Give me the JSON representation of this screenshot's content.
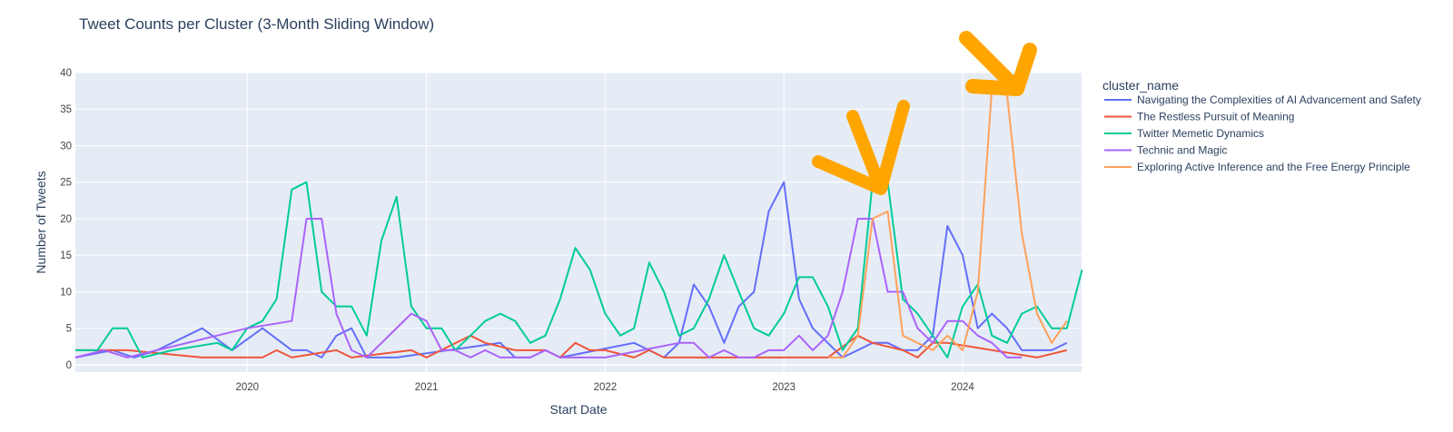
{
  "chart_data": {
    "type": "line",
    "title": "Tweet Counts per Cluster (3-Month Sliding Window)",
    "xlabel": "Start Date",
    "ylabel": "Number of Tweets",
    "xlim": [
      "2019-01-15",
      "2024-08-31"
    ],
    "ylim": [
      -1,
      40
    ],
    "yticks": [
      0,
      5,
      10,
      15,
      20,
      25,
      30,
      35,
      40
    ],
    "xticks": [
      {
        "label": "2020",
        "date": "2020-01-01"
      },
      {
        "label": "2021",
        "date": "2021-01-01"
      },
      {
        "label": "2022",
        "date": "2022-01-01"
      },
      {
        "label": "2023",
        "date": "2023-01-01"
      },
      {
        "label": "2024",
        "date": "2024-01-01"
      }
    ],
    "grid": true,
    "plot_background": "#e5ecf6",
    "legend": {
      "title": "cluster_name",
      "position": "right"
    },
    "series": [
      {
        "name": "Navigating the Complexities of AI Advancement and Safety",
        "color": "#636efa",
        "points": [
          [
            "2019-01-15",
            1
          ],
          [
            "2019-04-01",
            2
          ],
          [
            "2019-05-15",
            1
          ],
          [
            "2019-07-01",
            2
          ],
          [
            "2019-10-01",
            5
          ],
          [
            "2019-12-01",
            2
          ],
          [
            "2020-02-01",
            5
          ],
          [
            "2020-04-01",
            2
          ],
          [
            "2020-05-01",
            2
          ],
          [
            "2020-06-01",
            1
          ],
          [
            "2020-07-01",
            4
          ],
          [
            "2020-08-01",
            5
          ],
          [
            "2020-09-01",
            1
          ],
          [
            "2020-11-01",
            1
          ],
          [
            "2021-06-01",
            3
          ],
          [
            "2021-07-01",
            1
          ],
          [
            "2021-08-01",
            1
          ],
          [
            "2021-09-01",
            2
          ],
          [
            "2021-10-01",
            1
          ],
          [
            "2022-03-01",
            3
          ],
          [
            "2022-04-01",
            2
          ],
          [
            "2022-05-01",
            1
          ],
          [
            "2022-06-01",
            3
          ],
          [
            "2022-07-01",
            11
          ],
          [
            "2022-08-01",
            8
          ],
          [
            "2022-09-01",
            3
          ],
          [
            "2022-10-01",
            8
          ],
          [
            "2022-11-01",
            10
          ],
          [
            "2022-12-01",
            21
          ],
          [
            "2023-01-01",
            25
          ],
          [
            "2023-02-01",
            9
          ],
          [
            "2023-03-01",
            5
          ],
          [
            "2023-05-01",
            1
          ],
          [
            "2023-06-01",
            2
          ],
          [
            "2023-07-01",
            3
          ],
          [
            "2023-08-01",
            3
          ],
          [
            "2023-09-01",
            2
          ],
          [
            "2023-10-01",
            2
          ],
          [
            "2023-11-01",
            4
          ],
          [
            "2023-12-01",
            19
          ],
          [
            "2024-01-01",
            15
          ],
          [
            "2024-02-01",
            5
          ],
          [
            "2024-03-01",
            7
          ],
          [
            "2024-04-01",
            5
          ],
          [
            "2024-05-01",
            2
          ],
          [
            "2024-07-01",
            2
          ],
          [
            "2024-08-01",
            3
          ]
        ]
      },
      {
        "name": "The Restless Pursuit of Meaning",
        "color": "#ef553b",
        "points": [
          [
            "2019-01-15",
            2
          ],
          [
            "2019-05-01",
            2
          ],
          [
            "2019-10-01",
            1
          ],
          [
            "2019-11-15",
            1
          ],
          [
            "2020-01-01",
            1
          ],
          [
            "2020-02-01",
            1
          ],
          [
            "2020-03-01",
            2
          ],
          [
            "2020-04-01",
            1
          ],
          [
            "2020-07-01",
            2
          ],
          [
            "2020-08-01",
            1
          ],
          [
            "2020-12-01",
            2
          ],
          [
            "2021-01-01",
            1
          ],
          [
            "2021-04-01",
            4
          ],
          [
            "2021-05-01",
            3
          ],
          [
            "2021-07-01",
            2
          ],
          [
            "2021-09-01",
            2
          ],
          [
            "2021-10-01",
            1
          ],
          [
            "2021-11-01",
            3
          ],
          [
            "2021-12-01",
            2
          ],
          [
            "2022-01-01",
            2
          ],
          [
            "2022-03-01",
            1
          ],
          [
            "2022-04-01",
            2
          ],
          [
            "2022-05-01",
            1
          ],
          [
            "2022-07-01",
            1
          ],
          [
            "2023-04-01",
            1
          ],
          [
            "2023-06-01",
            4
          ],
          [
            "2023-07-01",
            3
          ],
          [
            "2023-09-01",
            2
          ],
          [
            "2023-10-01",
            1
          ],
          [
            "2023-11-01",
            3
          ],
          [
            "2023-12-01",
            3
          ],
          [
            "2024-06-01",
            1
          ],
          [
            "2024-08-01",
            2
          ]
        ]
      },
      {
        "name": "Twitter Memetic Dynamics",
        "color": "#00cc96",
        "points": [
          [
            "2019-01-15",
            2
          ],
          [
            "2019-03-01",
            2
          ],
          [
            "2019-04-01",
            5
          ],
          [
            "2019-05-01",
            5
          ],
          [
            "2019-06-01",
            1
          ],
          [
            "2019-08-01",
            2
          ],
          [
            "2019-11-01",
            3
          ],
          [
            "2019-12-01",
            2
          ],
          [
            "2020-01-01",
            5
          ],
          [
            "2020-02-01",
            6
          ],
          [
            "2020-03-01",
            9
          ],
          [
            "2020-04-01",
            24
          ],
          [
            "2020-05-01",
            25
          ],
          [
            "2020-06-01",
            10
          ],
          [
            "2020-07-01",
            8
          ],
          [
            "2020-08-01",
            8
          ],
          [
            "2020-09-01",
            4
          ],
          [
            "2020-10-01",
            17
          ],
          [
            "2020-11-01",
            23
          ],
          [
            "2020-12-01",
            8
          ],
          [
            "2021-01-01",
            5
          ],
          [
            "2021-02-01",
            5
          ],
          [
            "2021-03-01",
            2
          ],
          [
            "2021-04-01",
            4
          ],
          [
            "2021-05-01",
            6
          ],
          [
            "2021-06-01",
            7
          ],
          [
            "2021-07-01",
            6
          ],
          [
            "2021-08-01",
            3
          ],
          [
            "2021-09-01",
            4
          ],
          [
            "2021-10-01",
            9
          ],
          [
            "2021-11-01",
            16
          ],
          [
            "2021-12-01",
            13
          ],
          [
            "2022-01-01",
            7
          ],
          [
            "2022-02-01",
            4
          ],
          [
            "2022-03-01",
            5
          ],
          [
            "2022-04-01",
            14
          ],
          [
            "2022-05-01",
            10
          ],
          [
            "2022-06-01",
            4
          ],
          [
            "2022-07-01",
            5
          ],
          [
            "2022-08-01",
            9
          ],
          [
            "2022-09-01",
            15
          ],
          [
            "2022-10-01",
            10
          ],
          [
            "2022-11-01",
            5
          ],
          [
            "2022-12-01",
            4
          ],
          [
            "2023-01-01",
            7
          ],
          [
            "2023-02-01",
            12
          ],
          [
            "2023-03-01",
            12
          ],
          [
            "2023-04-01",
            8
          ],
          [
            "2023-05-01",
            2
          ],
          [
            "2023-06-01",
            5
          ],
          [
            "2023-07-01",
            25
          ],
          [
            "2023-08-01",
            25
          ],
          [
            "2023-09-01",
            9
          ],
          [
            "2023-10-01",
            7
          ],
          [
            "2023-11-01",
            4
          ],
          [
            "2023-12-01",
            1
          ],
          [
            "2024-01-01",
            8
          ],
          [
            "2024-02-01",
            11
          ],
          [
            "2024-03-01",
            4
          ],
          [
            "2024-04-01",
            3
          ],
          [
            "2024-05-01",
            7
          ],
          [
            "2024-06-01",
            8
          ],
          [
            "2024-07-01",
            5
          ],
          [
            "2024-08-01",
            5
          ],
          [
            "2024-09-01",
            13
          ]
        ]
      },
      {
        "name": "Technic and Magic",
        "color": "#ab63fa",
        "points": [
          [
            "2019-01-15",
            1
          ],
          [
            "2019-03-15",
            2
          ],
          [
            "2019-05-01",
            1
          ],
          [
            "2019-07-01",
            2
          ],
          [
            "2020-01-01",
            5
          ],
          [
            "2020-04-01",
            6
          ],
          [
            "2020-05-01",
            20
          ],
          [
            "2020-06-01",
            20
          ],
          [
            "2020-07-01",
            7
          ],
          [
            "2020-08-01",
            2
          ],
          [
            "2020-09-01",
            1
          ],
          [
            "2020-12-01",
            7
          ],
          [
            "2021-01-01",
            6
          ],
          [
            "2021-02-01",
            2
          ],
          [
            "2021-03-01",
            2
          ],
          [
            "2021-04-01",
            1
          ],
          [
            "2021-05-01",
            2
          ],
          [
            "2021-06-01",
            1
          ],
          [
            "2021-08-01",
            1
          ],
          [
            "2021-09-01",
            2
          ],
          [
            "2021-10-01",
            1
          ],
          [
            "2022-01-01",
            1
          ],
          [
            "2022-06-01",
            3
          ],
          [
            "2022-07-01",
            3
          ],
          [
            "2022-08-01",
            1
          ],
          [
            "2022-09-01",
            2
          ],
          [
            "2022-10-01",
            1
          ],
          [
            "2022-11-01",
            1
          ],
          [
            "2022-12-01",
            2
          ],
          [
            "2023-01-01",
            2
          ],
          [
            "2023-02-01",
            4
          ],
          [
            "2023-03-01",
            2
          ],
          [
            "2023-04-01",
            4
          ],
          [
            "2023-05-01",
            10
          ],
          [
            "2023-06-01",
            20
          ],
          [
            "2023-07-01",
            20
          ],
          [
            "2023-08-01",
            10
          ],
          [
            "2023-09-01",
            10
          ],
          [
            "2023-10-01",
            5
          ],
          [
            "2023-11-01",
            3
          ],
          [
            "2023-12-01",
            6
          ],
          [
            "2024-01-01",
            6
          ],
          [
            "2024-02-01",
            4
          ],
          [
            "2024-03-01",
            3
          ],
          [
            "2024-04-01",
            1
          ],
          [
            "2024-05-01",
            1
          ]
        ]
      },
      {
        "name": "Exploring Active Inference and the Free Energy Principle",
        "color": "#ffa15a",
        "points": [
          [
            "2023-04-01",
            1
          ],
          [
            "2023-05-01",
            1
          ],
          [
            "2023-06-01",
            4
          ],
          [
            "2023-07-01",
            20
          ],
          [
            "2023-08-01",
            21
          ],
          [
            "2023-09-01",
            4
          ],
          [
            "2023-10-01",
            3
          ],
          [
            "2023-11-01",
            2
          ],
          [
            "2023-12-01",
            4
          ],
          [
            "2024-01-01",
            2
          ],
          [
            "2024-02-01",
            10
          ],
          [
            "2024-03-01",
            38
          ],
          [
            "2024-04-01",
            37
          ],
          [
            "2024-05-01",
            18
          ],
          [
            "2024-06-01",
            7
          ],
          [
            "2024-07-01",
            3
          ],
          [
            "2024-08-01",
            6
          ]
        ]
      }
    ]
  }
}
